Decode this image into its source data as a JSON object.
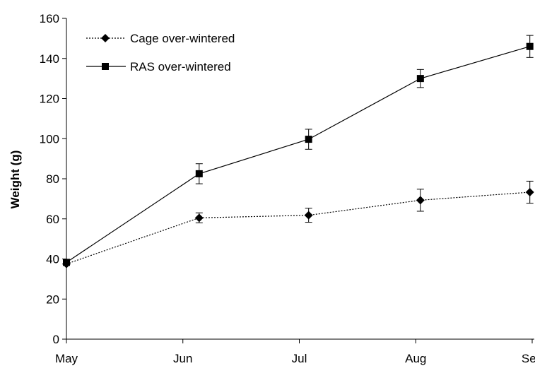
{
  "chart_data": {
    "type": "line",
    "title": "",
    "xlabel": "",
    "ylabel": "Weight (g)",
    "ylim": [
      0,
      160
    ],
    "yticks": [
      0,
      20,
      40,
      60,
      80,
      100,
      120,
      140,
      160
    ],
    "xticks": [
      {
        "label": "May",
        "x": 0
      },
      {
        "label": "Jun",
        "x": 1
      },
      {
        "label": "Jul",
        "x": 2
      },
      {
        "label": "Aug",
        "x": 3
      },
      {
        "label": "Sep",
        "x": 4
      }
    ],
    "xlim": [
      0,
      4
    ],
    "grid": false,
    "legend_position": "top-left",
    "series": [
      {
        "name": "Cage over-wintered",
        "marker": "diamond",
        "line_style": "dotted",
        "color": "#000000",
        "points": [
          {
            "x": 0.0,
            "y": 37.5,
            "err": 1.0
          },
          {
            "x": 1.14,
            "y": 60.5,
            "err": 2.5
          },
          {
            "x": 2.08,
            "y": 61.8,
            "err": 3.5
          },
          {
            "x": 3.04,
            "y": 69.3,
            "err": 5.5
          },
          {
            "x": 3.98,
            "y": 73.3,
            "err": 5.5
          }
        ]
      },
      {
        "name": "RAS over-wintered",
        "marker": "square",
        "line_style": "solid",
        "color": "#000000",
        "points": [
          {
            "x": 0.0,
            "y": 38.3,
            "err": 1.0
          },
          {
            "x": 1.14,
            "y": 82.5,
            "err": 5.0
          },
          {
            "x": 2.08,
            "y": 99.7,
            "err": 5.0
          },
          {
            "x": 3.04,
            "y": 130.0,
            "err": 4.5
          },
          {
            "x": 3.98,
            "y": 146.0,
            "err": 5.5
          }
        ]
      }
    ]
  }
}
